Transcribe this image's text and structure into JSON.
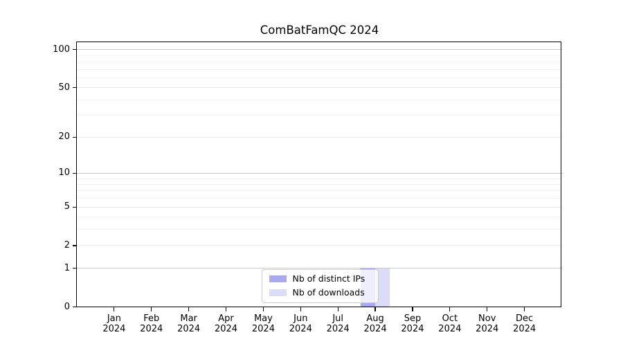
{
  "chart_data": {
    "type": "bar",
    "title": "ComBatFamQC 2024",
    "x": {
      "months": [
        "Jan",
        "Feb",
        "Mar",
        "Apr",
        "May",
        "Jun",
        "Jul",
        "Aug",
        "Sep",
        "Oct",
        "Nov",
        "Dec"
      ],
      "year": "2024"
    },
    "categories": [
      "Jan 2024",
      "Feb 2024",
      "Mar 2024",
      "Apr 2024",
      "May 2024",
      "Jun 2024",
      "Jul 2024",
      "Aug 2024",
      "Sep 2024",
      "Oct 2024",
      "Nov 2024",
      "Dec 2024"
    ],
    "series": [
      {
        "name": "Nb of distinct IPs",
        "color": "#a9a9ee",
        "values": [
          0,
          0,
          0,
          0,
          0,
          0,
          0,
          1,
          0,
          0,
          0,
          0
        ]
      },
      {
        "name": "Nb of downloads",
        "color": "#dcdcf8",
        "values": [
          0,
          0,
          0,
          0,
          0,
          0,
          0,
          1,
          0,
          0,
          0,
          0
        ]
      }
    ],
    "y_axis": {
      "scale": "log10(1+value)",
      "ticks": [
        0,
        1,
        2,
        5,
        10,
        20,
        50,
        100
      ],
      "strong_ticks": [
        1,
        10,
        100
      ],
      "minor_ticks": [
        3,
        4,
        6,
        7,
        8,
        9,
        30,
        40,
        60,
        70,
        80,
        90
      ],
      "ylim": [
        0,
        112
      ],
      "grid": "on"
    },
    "legend": {
      "location": "lower center"
    }
  },
  "colors": {
    "background": "#ffffff",
    "spine": "#000000",
    "text": "#000000",
    "grid_strong": "#c8c8c8",
    "grid_light": "#eaeaea",
    "grid_minor": "#f2f2f2",
    "legend_border": "#cccccc",
    "bar_distinct_ips": "#a9a9ee",
    "bar_downloads": "#dcdcf8"
  }
}
